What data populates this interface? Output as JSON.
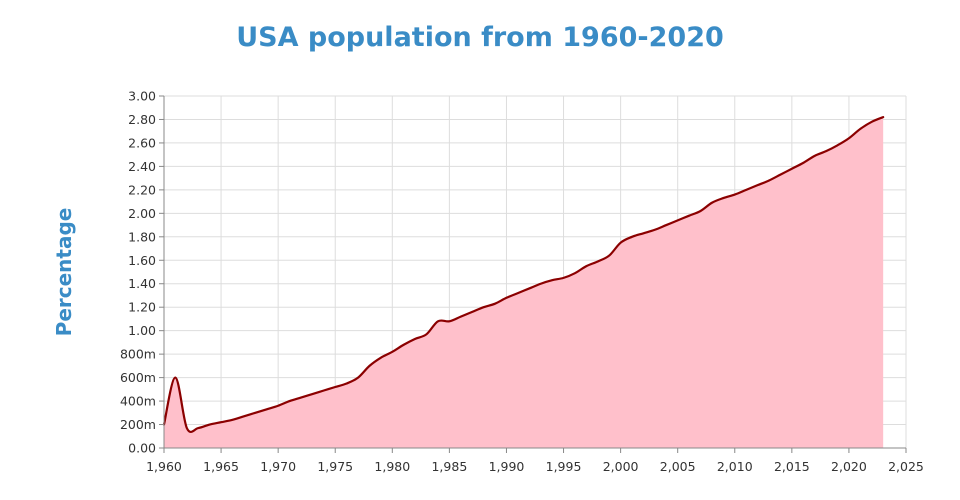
{
  "chart_data": {
    "type": "area",
    "title": "USA population from 1960-2020",
    "xlabel": "",
    "ylabel": "Percentage",
    "xlim": [
      1960,
      2025
    ],
    "ylim": [
      0,
      3.0
    ],
    "x_ticks": [
      1960,
      1965,
      1970,
      1975,
      1980,
      1985,
      1990,
      1995,
      2000,
      2005,
      2010,
      2015,
      2020,
      2025
    ],
    "x_tick_labels": [
      "1,960",
      "1,965",
      "1,970",
      "1,975",
      "1,980",
      "1,985",
      "1,990",
      "1,995",
      "2,000",
      "2,005",
      "2,010",
      "2,015",
      "2,020",
      "2,025"
    ],
    "y_ticks": [
      0,
      0.2,
      0.4,
      0.6,
      0.8,
      1.0,
      1.2,
      1.4,
      1.6,
      1.8,
      2.0,
      2.2,
      2.4,
      2.6,
      2.8,
      3.0
    ],
    "y_tick_labels": [
      "0.00",
      "200m",
      "400m",
      "600m",
      "800m",
      "1.00",
      "1.20",
      "1.40",
      "1.60",
      "1.80",
      "2.00",
      "2.20",
      "2.40",
      "2.60",
      "2.80",
      "3.00"
    ],
    "grid": true,
    "series": [
      {
        "line_color": "#8b0000",
        "fill_color": "#ffc0cb",
        "x": [
          1960,
          1961,
          1962,
          1963,
          1964,
          1965,
          1966,
          1967,
          1968,
          1969,
          1970,
          1971,
          1972,
          1973,
          1974,
          1975,
          1976,
          1977,
          1978,
          1979,
          1980,
          1981,
          1982,
          1983,
          1984,
          1985,
          1986,
          1987,
          1988,
          1989,
          1990,
          1991,
          1992,
          1993,
          1994,
          1995,
          1996,
          1997,
          1998,
          1999,
          2000,
          2001,
          2002,
          2003,
          2004,
          2005,
          2006,
          2007,
          2008,
          2009,
          2010,
          2011,
          2012,
          2013,
          2014,
          2015,
          2016,
          2017,
          2018,
          2019,
          2020,
          2021,
          2022,
          2023
        ],
        "values": [
          0.2,
          0.6,
          0.17,
          0.17,
          0.2,
          0.22,
          0.24,
          0.27,
          0.3,
          0.33,
          0.36,
          0.4,
          0.43,
          0.46,
          0.49,
          0.52,
          0.55,
          0.6,
          0.7,
          0.77,
          0.82,
          0.88,
          0.93,
          0.97,
          1.08,
          1.08,
          1.12,
          1.16,
          1.2,
          1.23,
          1.28,
          1.32,
          1.36,
          1.4,
          1.43,
          1.45,
          1.49,
          1.55,
          1.59,
          1.64,
          1.75,
          1.8,
          1.83,
          1.86,
          1.9,
          1.94,
          1.98,
          2.02,
          2.09,
          2.13,
          2.16,
          2.2,
          2.24,
          2.28,
          2.33,
          2.38,
          2.43,
          2.49,
          2.53,
          2.58,
          2.64,
          2.72,
          2.78,
          2.82
        ]
      }
    ]
  }
}
